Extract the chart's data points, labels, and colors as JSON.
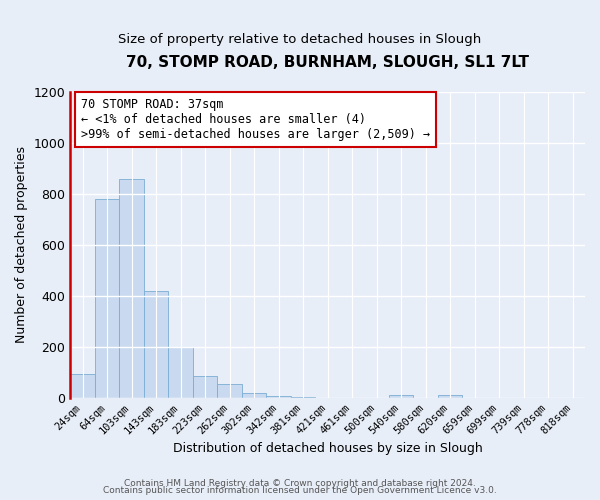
{
  "title": "70, STOMP ROAD, BURNHAM, SLOUGH, SL1 7LT",
  "subtitle": "Size of property relative to detached houses in Slough",
  "xlabel": "Distribution of detached houses by size in Slough",
  "ylabel": "Number of detached properties",
  "bar_labels": [
    "24sqm",
    "64sqm",
    "103sqm",
    "143sqm",
    "183sqm",
    "223sqm",
    "262sqm",
    "302sqm",
    "342sqm",
    "381sqm",
    "421sqm",
    "461sqm",
    "500sqm",
    "540sqm",
    "580sqm",
    "620sqm",
    "659sqm",
    "699sqm",
    "739sqm",
    "778sqm",
    "818sqm"
  ],
  "bar_values": [
    95,
    780,
    860,
    420,
    200,
    85,
    55,
    20,
    8,
    2,
    1,
    0,
    0,
    10,
    0,
    10,
    0,
    0,
    0,
    0,
    0
  ],
  "bar_color": "#c8d9f0",
  "bar_edgecolor": "#7aadd4",
  "highlight_color": "#cc0000",
  "annotation_title": "70 STOMP ROAD: 37sqm",
  "annotation_line1": "← <1% of detached houses are smaller (4)",
  "annotation_line2": ">99% of semi-detached houses are larger (2,509) →",
  "annotation_box_facecolor": "#ffffff",
  "annotation_box_edgecolor": "#cc0000",
  "ylim": [
    0,
    1200
  ],
  "yticks": [
    0,
    200,
    400,
    600,
    800,
    1000,
    1200
  ],
  "footer1": "Contains HM Land Registry data © Crown copyright and database right 2024.",
  "footer2": "Contains public sector information licensed under the Open Government Licence v3.0.",
  "fig_width": 6.0,
  "fig_height": 5.0,
  "dpi": 100,
  "background_color": "#e8eef8"
}
